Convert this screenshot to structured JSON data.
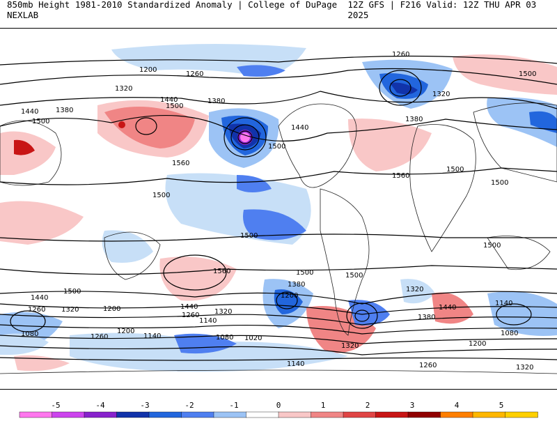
{
  "header": {
    "left_title": "850mb Height 1981-2010 Standardized Anomaly | College of DuPage NEXLAB",
    "right_title": "12Z GFS | F216 Valid: 12Z THU APR 03 2025"
  },
  "contour_labels": [
    "1260",
    "1200",
    "1260",
    "1320",
    "1380",
    "1500",
    "1440",
    "1380",
    "1500",
    "1440",
    "1500",
    "1560",
    "1500",
    "1440",
    "1320",
    "1380",
    "1560",
    "1500",
    "1500",
    "1500",
    "1500",
    "1500",
    "1560",
    "1500",
    "1500",
    "1380",
    "1320",
    "1200",
    "1440",
    "1380",
    "1500",
    "1440",
    "1260",
    "1320",
    "1200",
    "1440",
    "1260",
    "1140",
    "1320",
    "1080",
    "1260",
    "1140",
    "1200",
    "1020",
    "1080",
    "1320",
    "1200",
    "1260",
    "1140",
    "1320",
    "1140",
    "1080"
  ],
  "colorbar": {
    "ticks": [
      "-5",
      "-4",
      "-3",
      "-2",
      "-1",
      "0",
      "1",
      "2",
      "3",
      "4",
      "5"
    ],
    "colors": [
      "#ff77ee",
      "#cc44ee",
      "#8822cc",
      "#1133aa",
      "#2266dd",
      "#4f7ff0",
      "#9cc3f5",
      "#ffffff",
      "#f9c7c7",
      "#f08585",
      "#e04545",
      "#c81515",
      "#900000",
      "#ff7f00",
      "#ffb700",
      "#ffd000"
    ]
  }
}
